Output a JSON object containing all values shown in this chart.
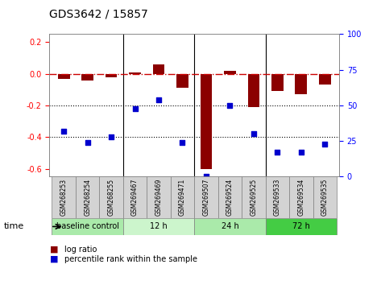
{
  "title": "GDS3642 / 15857",
  "samples": [
    "GSM268253",
    "GSM268254",
    "GSM268255",
    "GSM269467",
    "GSM269469",
    "GSM269471",
    "GSM269507",
    "GSM269524",
    "GSM269525",
    "GSM269533",
    "GSM269534",
    "GSM269535"
  ],
  "log_ratio": [
    -0.03,
    -0.04,
    -0.02,
    0.01,
    0.06,
    -0.09,
    -0.6,
    0.02,
    -0.21,
    -0.11,
    -0.13,
    -0.07
  ],
  "percentile_rank": [
    32,
    24,
    28,
    48,
    54,
    24,
    0,
    50,
    30,
    17,
    17,
    23
  ],
  "groups": [
    {
      "label": "baseline control",
      "start": 0,
      "end": 3,
      "color": "#90EE90"
    },
    {
      "label": "12 h",
      "start": 3,
      "end": 6,
      "color": "#90EE90"
    },
    {
      "label": "24 h",
      "start": 6,
      "end": 9,
      "color": "#90EE90"
    },
    {
      "label": "72 h",
      "start": 9,
      "end": 12,
      "color": "#90EE90"
    }
  ],
  "group_colors": [
    "#b8f0b8",
    "#d4f7d4",
    "#b8f0b8",
    "#66dd66"
  ],
  "ylim_left": [
    -0.65,
    0.25
  ],
  "ylim_right": [
    0,
    100
  ],
  "yticks_left": [
    -0.6,
    -0.4,
    -0.2,
    0.0,
    0.2
  ],
  "yticks_right": [
    0,
    25,
    50,
    75,
    100
  ],
  "bar_color": "#8B0000",
  "dot_color": "#0000CD",
  "hline_color": "#CC0000",
  "hline_style": "-.",
  "grid_color": "#000000",
  "bg_color": "#FFFFFF",
  "plot_bg": "#FFFFFF",
  "time_label": "time"
}
